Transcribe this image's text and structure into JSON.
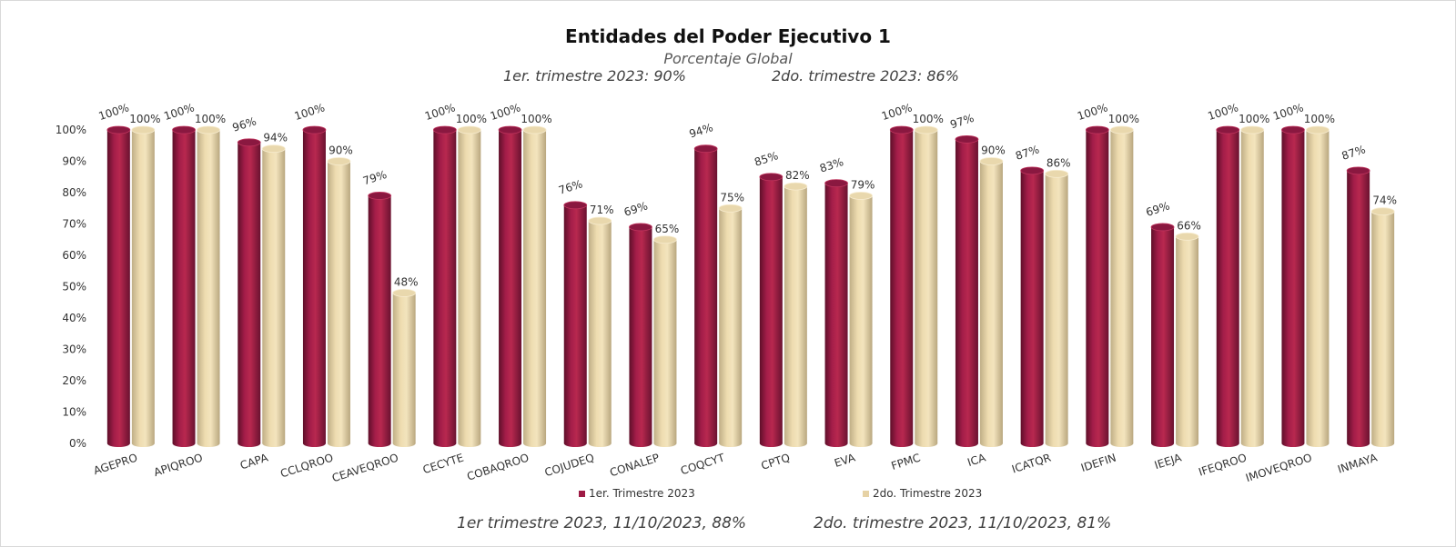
{
  "chart_data": {
    "type": "bar",
    "title": "Entidades del Poder Ejecutivo 1",
    "subtitle": "Porcentaje Global",
    "header_notes": [
      "1er. trimestre 2023: 90%",
      "2do. trimestre 2023: 86%"
    ],
    "footer_notes": [
      "1er trimestre  2023,  11/10/2023, 88%",
      "2do. trimestre 2023, 11/10/2023, 81%"
    ],
    "categories": [
      "AGEPRO",
      "APIQROO",
      "CAPA",
      "CCLQROO",
      "CEAVEQROO",
      "CECYTE",
      "COBAQROO",
      "COJUDEQ",
      "CONALEP",
      "COQCYT",
      "CPTQ",
      "EVA",
      "FPMC",
      "ICA",
      "ICATQR",
      "IDEFIN",
      "IEEJA",
      "IFEQROO",
      "IMOVEQROO",
      "INMAYA"
    ],
    "series": [
      {
        "name": "1er. Trimestre 2023",
        "color": "#9e1b45",
        "values": [
          100,
          100,
          96,
          100,
          79,
          100,
          100,
          76,
          69,
          94,
          85,
          83,
          100,
          97,
          87,
          100,
          69,
          100,
          100,
          87
        ]
      },
      {
        "name": "2do. Trimestre 2023",
        "color": "#e6d2a5",
        "values": [
          100,
          100,
          94,
          90,
          48,
          100,
          100,
          71,
          65,
          75,
          82,
          79,
          100,
          90,
          86,
          100,
          66,
          100,
          100,
          74
        ]
      }
    ],
    "ylim": [
      0,
      100
    ],
    "yticks": [
      "0%",
      "10%",
      "20%",
      "30%",
      "40%",
      "50%",
      "60%",
      "70%",
      "80%",
      "90%",
      "100%"
    ],
    "value_suffix": "%",
    "grid": false,
    "legend_position": "bottom"
  }
}
